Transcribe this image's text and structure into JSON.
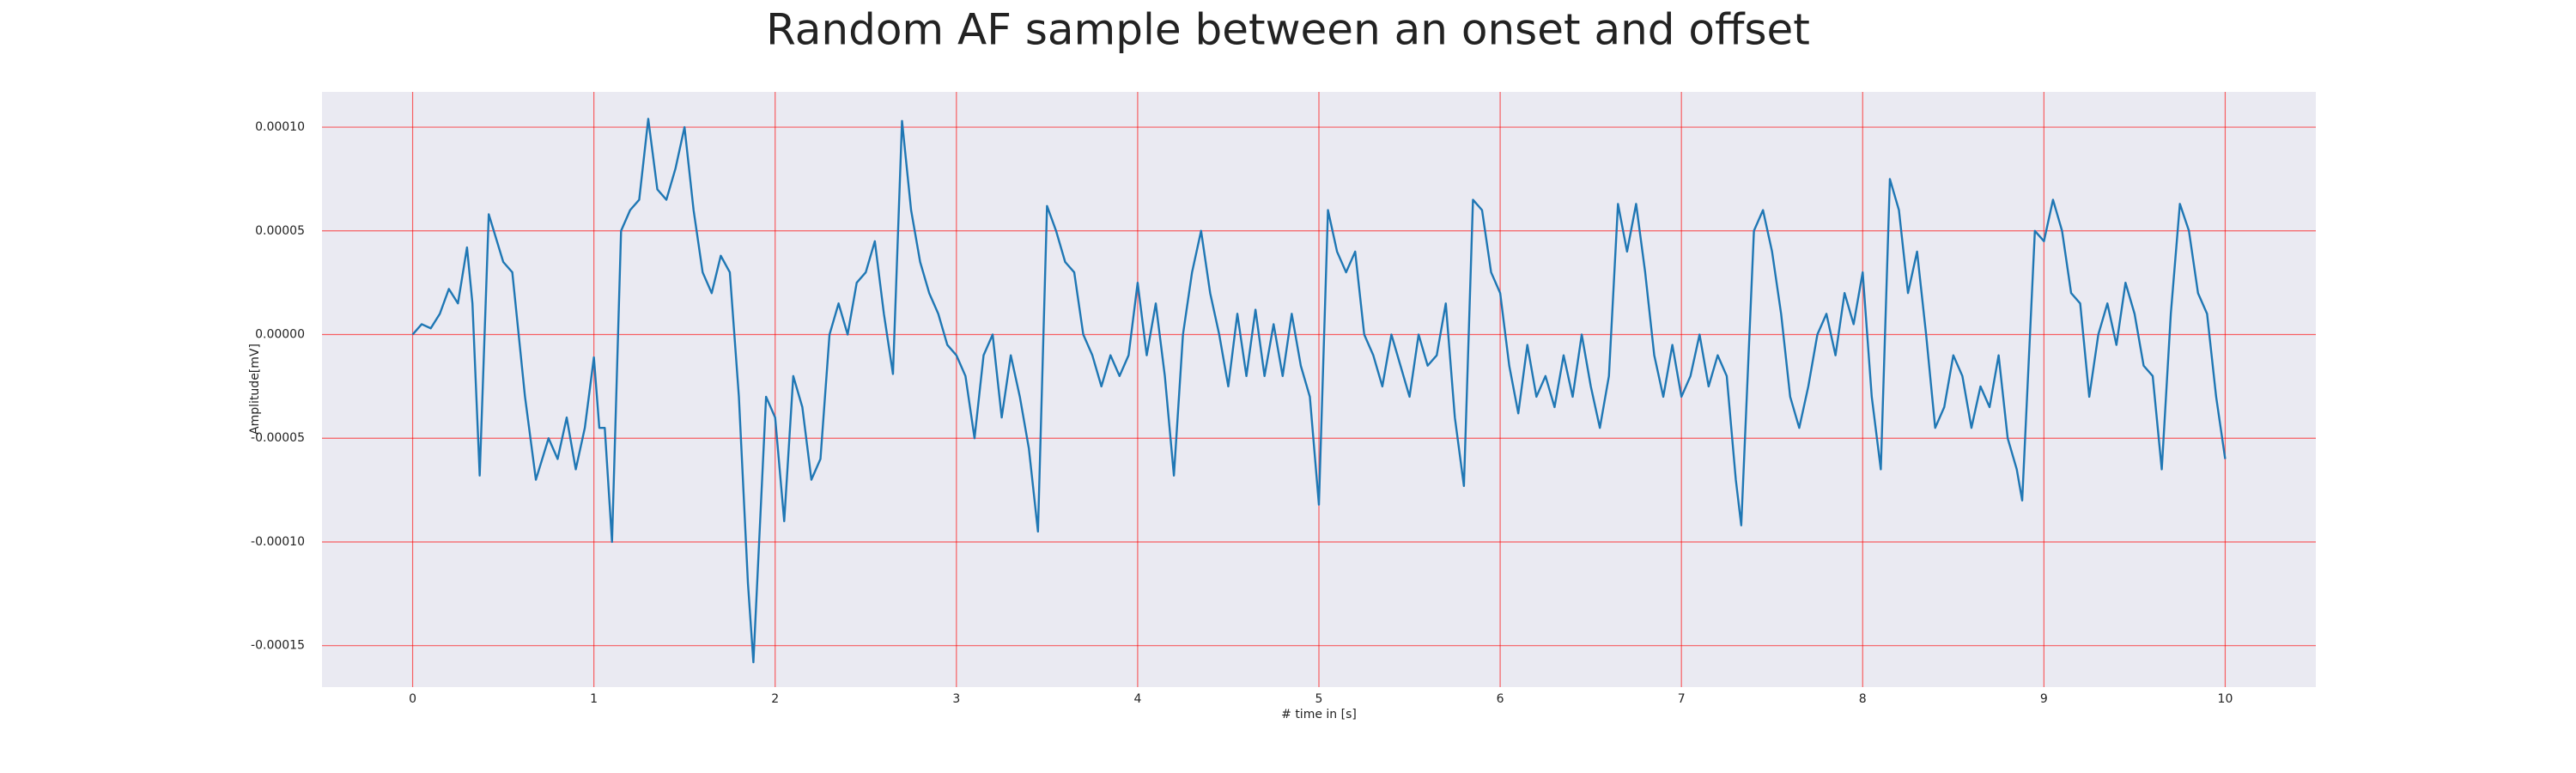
{
  "chart_data": {
    "type": "line",
    "title": "Random AF sample between an onset and offset",
    "xlabel": "# time in [s]",
    "ylabel": "Amplitude[mV]",
    "color": "#1f77b4",
    "grid": true,
    "grid_color": "#ff0000",
    "xlim": [
      -0.5,
      10.5
    ],
    "ylim": [
      -0.00017,
      0.000117
    ],
    "xticks": [
      0,
      1,
      2,
      3,
      4,
      5,
      6,
      7,
      8,
      9,
      10
    ],
    "yticks": [
      {
        "value": -0.00015,
        "label": "-0.00015"
      },
      {
        "value": -0.0001,
        "label": "-0.00010"
      },
      {
        "value": -5e-05,
        "label": "-0.00005"
      },
      {
        "value": 0,
        "label": "0.00000"
      },
      {
        "value": 5e-05,
        "label": "0.00005"
      },
      {
        "value": 0.0001,
        "label": "0.00010"
      }
    ],
    "x": [
      0,
      0.05,
      0.1,
      0.15,
      0.2,
      0.25,
      0.3,
      0.33,
      0.37,
      0.42,
      0.5,
      0.55,
      0.62,
      0.68,
      0.75,
      0.8,
      0.85,
      0.9,
      0.95,
      1.0,
      1.03,
      1.06,
      1.1,
      1.15,
      1.2,
      1.25,
      1.3,
      1.35,
      1.4,
      1.45,
      1.5,
      1.55,
      1.6,
      1.65,
      1.7,
      1.75,
      1.8,
      1.85,
      1.88,
      1.95,
      2.0,
      2.05,
      2.1,
      2.15,
      2.2,
      2.25,
      2.3,
      2.35,
      2.4,
      2.45,
      2.5,
      2.55,
      2.6,
      2.65,
      2.7,
      2.75,
      2.8,
      2.85,
      2.9,
      2.95,
      3.0,
      3.05,
      3.1,
      3.15,
      3.2,
      3.25,
      3.3,
      3.35,
      3.4,
      3.45,
      3.5,
      3.55,
      3.6,
      3.65,
      3.7,
      3.75,
      3.8,
      3.85,
      3.9,
      3.95,
      4.0,
      4.05,
      4.1,
      4.15,
      4.2,
      4.25,
      4.3,
      4.35,
      4.4,
      4.45,
      4.5,
      4.55,
      4.6,
      4.65,
      4.7,
      4.75,
      4.8,
      4.85,
      4.9,
      4.95,
      5.0,
      5.05,
      5.1,
      5.15,
      5.2,
      5.25,
      5.3,
      5.35,
      5.4,
      5.45,
      5.5,
      5.55,
      5.6,
      5.65,
      5.7,
      5.75,
      5.8,
      5.85,
      5.9,
      5.95,
      6.0,
      6.05,
      6.1,
      6.15,
      6.2,
      6.25,
      6.3,
      6.35,
      6.4,
      6.45,
      6.5,
      6.55,
      6.6,
      6.65,
      6.7,
      6.75,
      6.8,
      6.85,
      6.9,
      6.95,
      7.0,
      7.05,
      7.1,
      7.15,
      7.2,
      7.25,
      7.3,
      7.33,
      7.4,
      7.45,
      7.5,
      7.55,
      7.6,
      7.65,
      7.7,
      7.75,
      7.8,
      7.85,
      7.9,
      7.95,
      8.0,
      8.05,
      8.1,
      8.15,
      8.2,
      8.25,
      8.3,
      8.35,
      8.4,
      8.45,
      8.5,
      8.55,
      8.6,
      8.65,
      8.7,
      8.75,
      8.8,
      8.85,
      8.88,
      8.95,
      9.0,
      9.05,
      9.1,
      9.15,
      9.2,
      9.25,
      9.3,
      9.35,
      9.4,
      9.45,
      9.5,
      9.55,
      9.6,
      9.65,
      9.7,
      9.75,
      9.8,
      9.85,
      9.9,
      9.95,
      10.0
    ],
    "values": [
      0,
      5e-06,
      3e-06,
      1e-05,
      2.2e-05,
      1.5e-05,
      4.2e-05,
      1.5e-05,
      -6.8e-05,
      5.8e-05,
      3.5e-05,
      3e-05,
      -3e-05,
      -7e-05,
      -5e-05,
      -6e-05,
      -4e-05,
      -6.5e-05,
      -4.5e-05,
      -1.1e-05,
      -4.5e-05,
      -4.5e-05,
      -0.0001,
      5e-05,
      6e-05,
      6.5e-05,
      0.000104,
      7e-05,
      6.5e-05,
      8e-05,
      0.0001,
      6e-05,
      3e-05,
      2e-05,
      3.8e-05,
      3e-05,
      -3e-05,
      -0.00012,
      -0.000158,
      -3e-05,
      -4e-05,
      -9e-05,
      -2e-05,
      -3.5e-05,
      -7e-05,
      -6e-05,
      0,
      1.5e-05,
      0,
      2.5e-05,
      3e-05,
      4.5e-05,
      1e-05,
      -1.9e-05,
      0.000103,
      6e-05,
      3.5e-05,
      2e-05,
      1e-05,
      -5e-06,
      -1e-05,
      -2e-05,
      -5e-05,
      -1e-05,
      0,
      -4e-05,
      -1e-05,
      -3e-05,
      -5.5e-05,
      -9.5e-05,
      6.2e-05,
      5e-05,
      3.5e-05,
      3e-05,
      0,
      -1e-05,
      -2.5e-05,
      -1e-05,
      -2e-05,
      -1e-05,
      2.5e-05,
      -1e-05,
      1.5e-05,
      -2e-05,
      -6.8e-05,
      0,
      3e-05,
      5e-05,
      2e-05,
      0,
      -2.5e-05,
      1e-05,
      -2e-05,
      1.2e-05,
      -2e-05,
      5e-06,
      -2e-05,
      1e-05,
      -1.5e-05,
      -3e-05,
      -8.2e-05,
      6e-05,
      4e-05,
      3e-05,
      4e-05,
      0,
      -1e-05,
      -2.5e-05,
      0,
      -1.5e-05,
      -3e-05,
      0,
      -1.5e-05,
      -1e-05,
      1.5e-05,
      -4e-05,
      -7.3e-05,
      6.5e-05,
      6e-05,
      3e-05,
      2e-05,
      -1.5e-05,
      -3.8e-05,
      -5e-06,
      -3e-05,
      -2e-05,
      -3.5e-05,
      -1e-05,
      -3e-05,
      0,
      -2.5e-05,
      -4.5e-05,
      -2e-05,
      6.3e-05,
      4e-05,
      6.3e-05,
      3e-05,
      -1e-05,
      -3e-05,
      -5e-06,
      -3e-05,
      -2e-05,
      0,
      -2.5e-05,
      -1e-05,
      -2e-05,
      -7e-05,
      -9.2e-05,
      5e-05,
      6e-05,
      4e-05,
      1e-05,
      -3e-05,
      -4.5e-05,
      -2.5e-05,
      0,
      1e-05,
      -1e-05,
      2e-05,
      5e-06,
      3e-05,
      -3e-05,
      -6.5e-05,
      7.5e-05,
      6e-05,
      2e-05,
      4e-05,
      0,
      -4.5e-05,
      -3.5e-05,
      -1e-05,
      -2e-05,
      -4.5e-05,
      -2.5e-05,
      -3.5e-05,
      -1e-05,
      -5e-05,
      -6.5e-05,
      -8e-05,
      5e-05,
      4.5e-05,
      6.5e-05,
      5e-05,
      2e-05,
      1.5e-05,
      -3e-05,
      0,
      1.5e-05,
      -5e-06,
      2.5e-05,
      1e-05,
      -1.5e-05,
      -2e-05,
      -6.5e-05,
      1e-05,
      6.3e-05,
      5e-05,
      2e-05,
      1e-05,
      -3e-05,
      -6e-05
    ]
  }
}
